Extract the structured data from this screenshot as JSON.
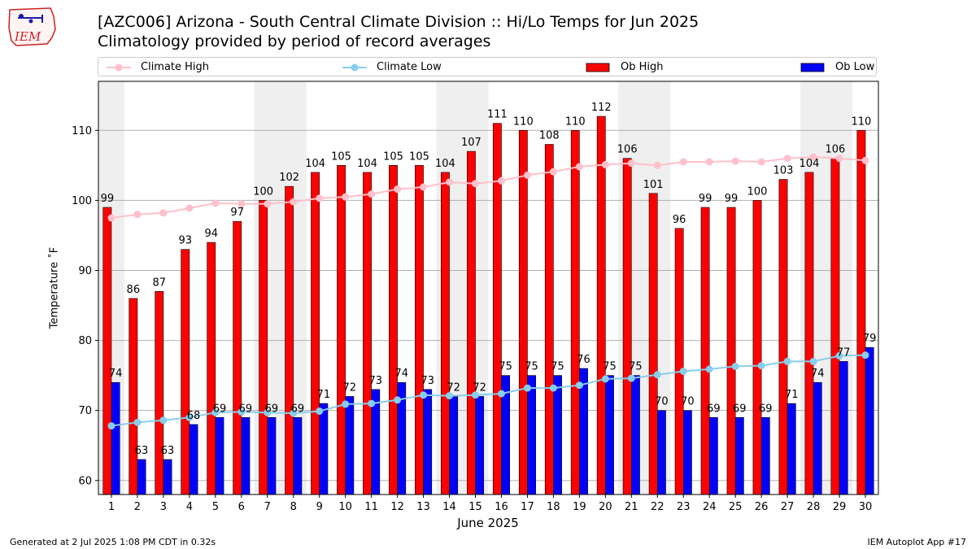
{
  "header": {
    "title_line1": "[AZC006] Arizona - South Central Climate Division :: Hi/Lo Temps for Jun 2025",
    "title_line2": "Climatology provided by period of record averages",
    "logo_text": "IEM"
  },
  "legend": {
    "climate_high": "Climate High",
    "climate_low": "Climate Low",
    "ob_high": "Ob High",
    "ob_low": "Ob Low"
  },
  "footer": {
    "generated": "Generated at 2 Jul 2025 1:08 PM CDT in 0.32s",
    "app": "IEM Autoplot App #17"
  },
  "colors": {
    "ob_high": "#ff0000",
    "ob_low": "#0000ff",
    "climate_high": "#ffc0cb",
    "climate_low": "#87ceeb",
    "weekend_shade": "#efefef"
  },
  "chart_data": {
    "type": "bar",
    "xlabel": "June 2025",
    "ylabel": "Temperature ˚F",
    "ylim": [
      58,
      117
    ],
    "yticks": [
      60,
      70,
      80,
      90,
      100,
      110
    ],
    "grid": "horizontal",
    "legend_position": "top",
    "categories": [
      1,
      2,
      3,
      4,
      5,
      6,
      7,
      8,
      9,
      10,
      11,
      12,
      13,
      14,
      15,
      16,
      17,
      18,
      19,
      20,
      21,
      22,
      23,
      24,
      25,
      26,
      27,
      28,
      29,
      30
    ],
    "weekend_days": [
      1,
      7,
      8,
      14,
      15,
      21,
      22,
      28,
      29
    ],
    "series": [
      {
        "name": "Ob High",
        "kind": "bar",
        "values": [
          99,
          86,
          87,
          93,
          94,
          97,
          100,
          102,
          104,
          105,
          104,
          105,
          105,
          104,
          107,
          111,
          110,
          108,
          110,
          112,
          106,
          101,
          96,
          99,
          99,
          100,
          103,
          104,
          106,
          110
        ]
      },
      {
        "name": "Ob Low",
        "kind": "bar",
        "values": [
          74,
          63,
          63,
          68,
          69,
          69,
          69,
          69,
          71,
          72,
          73,
          74,
          73,
          72,
          72,
          75,
          75,
          75,
          76,
          75,
          75,
          70,
          70,
          69,
          69,
          69,
          71,
          74,
          77,
          79
        ]
      },
      {
        "name": "Climate High",
        "kind": "line",
        "values": [
          97.5,
          98.0,
          98.2,
          98.9,
          99.6,
          99.5,
          99.5,
          99.8,
          100.3,
          100.5,
          100.9,
          101.6,
          101.9,
          102.6,
          102.4,
          102.8,
          103.6,
          104.1,
          104.8,
          105.1,
          105.3,
          105.0,
          105.5,
          105.5,
          105.6,
          105.5,
          106.0,
          106.2,
          106.0,
          105.7
        ]
      },
      {
        "name": "Climate Low",
        "kind": "line",
        "values": [
          67.8,
          68.3,
          68.6,
          69.0,
          69.7,
          69.8,
          69.7,
          69.6,
          69.9,
          70.9,
          71.0,
          71.5,
          72.2,
          72.1,
          72.2,
          72.4,
          73.2,
          73.2,
          73.6,
          74.5,
          74.6,
          75.1,
          75.6,
          75.9,
          76.3,
          76.4,
          77.0,
          77.0,
          77.8,
          77.9
        ]
      }
    ]
  }
}
